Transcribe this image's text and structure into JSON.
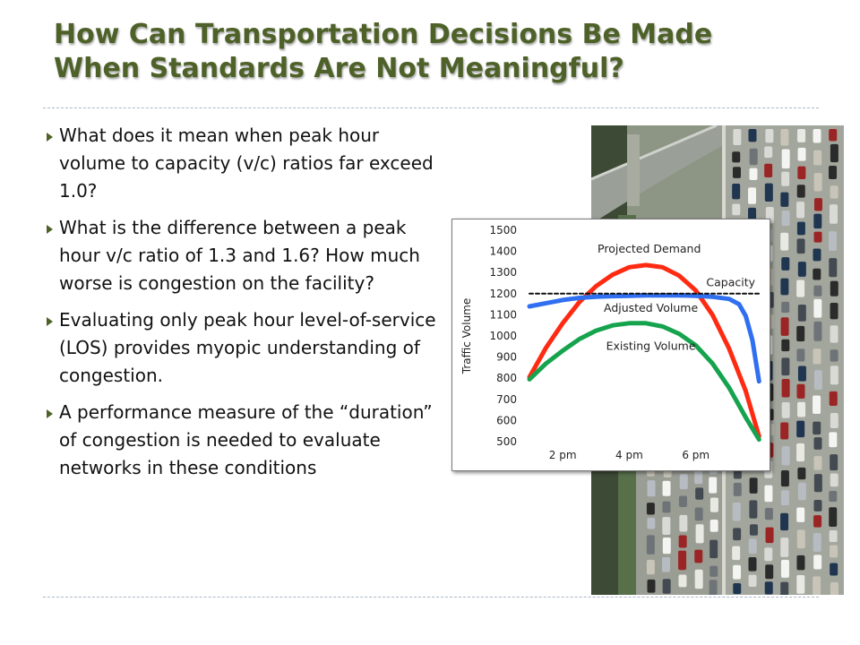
{
  "slide": {
    "title_lines": [
      "How Can Transportation Decisions Be Made",
      "When Standards Are Not Meaningful?"
    ],
    "title_color": "#4e6128",
    "bullet_icon": "triangle-bullet-icon",
    "bullets": [
      "What does it mean when peak hour volume to capacity (v/c) ratios far exceed 1.0?",
      "What is the difference between a peak hour v/c ratio of 1.3 and 1.6? How much worse is congestion on the facility?",
      "Evaluating only peak hour level-of-service (LOS) provides myopic understanding of congestion.",
      "A performance measure of the “duration” of congestion is needed to evaluate networks in these conditions"
    ]
  },
  "chart_data": {
    "type": "line",
    "title": "",
    "xlabel": "",
    "ylabel": "Traffic Volume",
    "xlim": [
      1,
      8
    ],
    "ylim": [
      500,
      1500
    ],
    "x_ticks": [
      {
        "value": 2,
        "label": "2 pm"
      },
      {
        "value": 4,
        "label": "4 pm"
      },
      {
        "value": 6,
        "label": "6 pm"
      }
    ],
    "y_ticks": [
      500,
      600,
      700,
      800,
      900,
      1000,
      1100,
      1200,
      1300,
      1400,
      1500
    ],
    "grid": false,
    "legend": "inline labels",
    "series": [
      {
        "name": "Projected Demand",
        "color": "#ff2a12",
        "style": "solid",
        "x": [
          1.0,
          1.5,
          2.0,
          2.5,
          3.0,
          3.5,
          4.0,
          4.5,
          5.0,
          5.5,
          6.0,
          6.5,
          7.0,
          7.5,
          7.9
        ],
        "y": [
          805,
          945,
          1060,
          1160,
          1235,
          1290,
          1325,
          1335,
          1325,
          1285,
          1215,
          1100,
          940,
          740,
          525
        ]
      },
      {
        "name": "Adjusted Volume",
        "color": "#2f6ff0",
        "style": "solid",
        "x": [
          1.0,
          1.5,
          2.0,
          2.5,
          3.0,
          3.5,
          4.0,
          4.5,
          5.0,
          5.5,
          6.0,
          6.5,
          7.0,
          7.3,
          7.5,
          7.7,
          7.9
        ],
        "y": [
          1140,
          1155,
          1170,
          1180,
          1185,
          1188,
          1190,
          1192,
          1192,
          1192,
          1190,
          1185,
          1175,
          1150,
          1095,
          980,
          785
        ]
      },
      {
        "name": "Existing Volume",
        "color": "#16a34e",
        "style": "solid",
        "x": [
          1.0,
          1.5,
          2.0,
          2.5,
          3.0,
          3.5,
          4.0,
          4.5,
          5.0,
          5.5,
          6.0,
          6.5,
          7.0,
          7.5,
          7.9
        ],
        "y": [
          795,
          870,
          930,
          985,
          1025,
          1050,
          1060,
          1060,
          1045,
          1010,
          955,
          870,
          755,
          615,
          510
        ]
      },
      {
        "name": "Capacity",
        "color": "#111111",
        "style": "dashed",
        "x": [
          1.0,
          7.9
        ],
        "y": [
          1200,
          1200
        ]
      }
    ],
    "series_labels": [
      {
        "text": "Projected Demand",
        "x": 4.6,
        "y": 1395
      },
      {
        "text": "Capacity",
        "x": 7.05,
        "y": 1235
      },
      {
        "text": "Adjusted Volume",
        "x": 4.65,
        "y": 1115
      },
      {
        "text": "Existing Volume",
        "x": 4.65,
        "y": 935
      }
    ]
  }
}
